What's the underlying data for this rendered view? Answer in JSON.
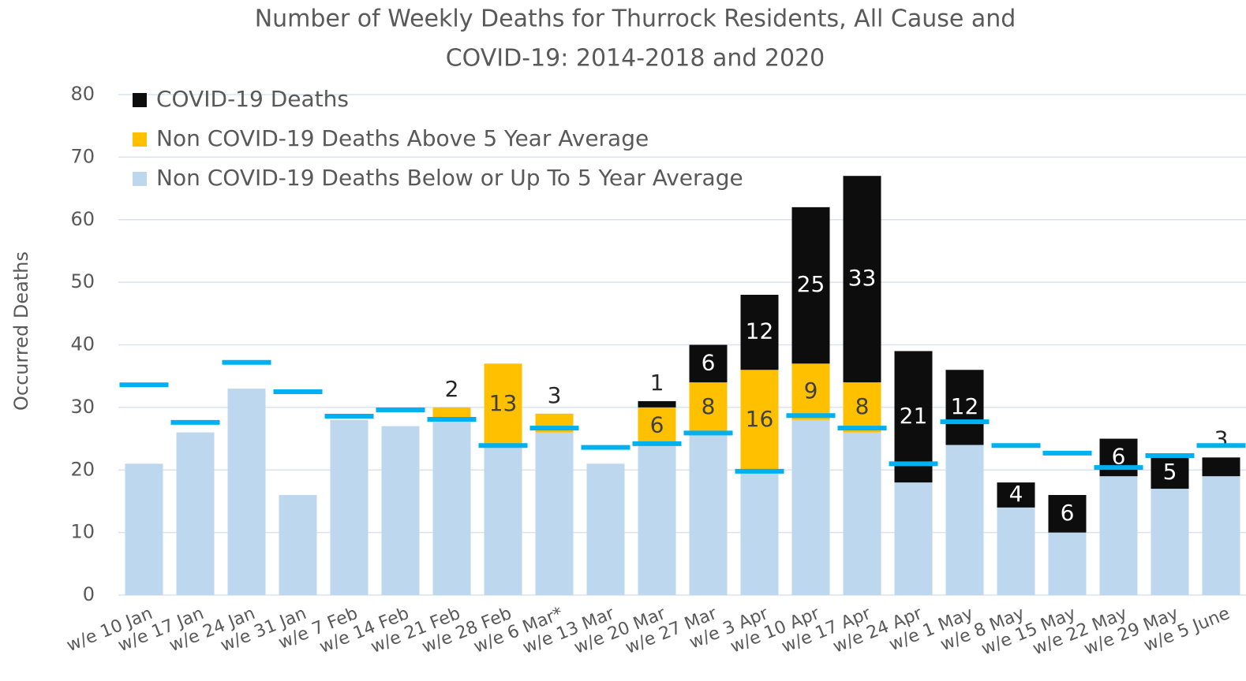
{
  "chart_data": {
    "type": "stacked_bar",
    "title": [
      "Number of Weekly Deaths for Thurrock Residents, All Cause and",
      "COVID-19: 2014-2018 and 2020"
    ],
    "y_label": "Occurred Deaths",
    "categories": [
      "w/e 10 Jan",
      "w/e 17 Jan",
      "w/e 24 Jan",
      "w/e 31 Jan",
      "w/e 7 Feb",
      "w/e 14 Feb",
      "w/e 21 Feb",
      "w/e 28 Feb",
      "w/e 6 Mar*",
      "w/e 13 Mar",
      "w/e 20 Mar",
      "w/e 27 Mar",
      "w/e 3 Apr",
      "w/e 10 Apr",
      "w/e 17 Apr",
      "w/e 24 Apr",
      "w/e 1 May",
      "w/e 8 May",
      "w/e 15 May",
      "w/e 22 May",
      "w/e 29 May",
      "w/e 5 June"
    ],
    "series": [
      {
        "name": "Non COVID-19 Deaths Below or Up To 5 Year Average",
        "color": "#bdd7ee",
        "values": [
          21,
          26,
          33,
          16,
          28,
          27,
          28,
          24,
          26,
          21,
          24,
          26,
          20,
          28,
          26,
          18,
          24,
          14,
          10,
          19,
          17,
          19
        ]
      },
      {
        "name": "Non COVID-19 Deaths Above 5 Year Average",
        "color": "#ffc000",
        "values": [
          0,
          0,
          0,
          0,
          0,
          0,
          2,
          13,
          3,
          0,
          6,
          8,
          16,
          9,
          8,
          0,
          0,
          0,
          0,
          0,
          0,
          0
        ]
      },
      {
        "name": "COVID-19 Deaths",
        "color": "#0d0d0d",
        "values": [
          0,
          0,
          0,
          0,
          0,
          0,
          0,
          0,
          0,
          0,
          1,
          6,
          12,
          25,
          33,
          21,
          12,
          4,
          6,
          6,
          5,
          3
        ]
      }
    ],
    "average": [
      33.6,
      27.6,
      37.2,
      32.5,
      28.6,
      29.6,
      28.1,
      23.9,
      26.7,
      23.6,
      24.2,
      25.9,
      19.8,
      28.7,
      26.7,
      21,
      27.7,
      23.9,
      22.7,
      20.4,
      22.3,
      23.9
    ],
    "average_color": "#00b0f0",
    "ylim": [
      0,
      80
    ],
    "yticks": [
      0,
      10,
      20,
      30,
      40,
      50,
      60,
      70,
      80
    ],
    "grid": true,
    "legend": "top-left"
  }
}
